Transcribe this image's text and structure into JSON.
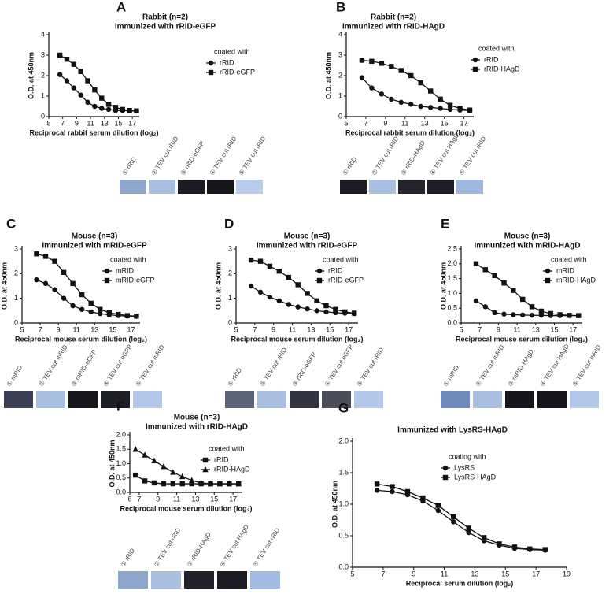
{
  "chart_data": [
    {
      "type": "line",
      "panel": "A",
      "title": "Rabbit (n=2)",
      "subtitle": "Immunized with rRID-eGFP",
      "xlabel": "Reciprocal rabbit serum dilution (log₂)",
      "ylabel": "O.D. at 450nm",
      "x": [
        6.6,
        7.6,
        8.6,
        9.6,
        10.6,
        11.6,
        12.6,
        13.6,
        14.6,
        15.6,
        16.6,
        17.6
      ],
      "xlim": [
        5,
        18
      ],
      "xticks": [
        5,
        7,
        9,
        11,
        13,
        15,
        17
      ],
      "ylim": [
        0,
        4
      ],
      "yticks": [
        0,
        1,
        2,
        3,
        4
      ],
      "legend_title": "coated with",
      "series": [
        {
          "name": "rRID",
          "color": "#111111",
          "marker": "circle",
          "values": [
            2.05,
            1.75,
            1.4,
            1.05,
            0.7,
            0.5,
            0.4,
            0.35,
            0.3,
            0.3,
            0.28,
            0.27
          ]
        },
        {
          "name": "rRID-eGFP",
          "color": "#111111",
          "marker": "square",
          "values": [
            3.0,
            2.8,
            2.55,
            2.2,
            1.75,
            1.3,
            0.9,
            0.6,
            0.45,
            0.35,
            0.3,
            0.28
          ]
        }
      ],
      "blot_lanes": [
        "① rRID",
        "② TEV cut rRID",
        "③ rRID-eGFP",
        "④ TEV cut rRID",
        "⑤ TEV cut rRID"
      ],
      "blot_colors": [
        "#8ea6cc",
        "#a9bfe0",
        "#1a1a22",
        "#15151c",
        "#b8cbe8"
      ]
    },
    {
      "type": "line",
      "panel": "B",
      "title": "Rabbit (n=2)",
      "subtitle": "Immunized with rRID-HAgD",
      "xlabel": "Reciprocal rabbit serum dilution (log₂)",
      "ylabel": "O.D. at 450nm",
      "x": [
        6.6,
        7.6,
        8.6,
        9.6,
        10.6,
        11.6,
        12.6,
        13.6,
        14.6,
        15.6,
        16.6,
        17.6
      ],
      "xlim": [
        5,
        18
      ],
      "xticks": [
        5,
        7,
        9,
        11,
        13,
        15,
        17
      ],
      "ylim": [
        0,
        4
      ],
      "yticks": [
        0,
        1,
        2,
        3,
        4
      ],
      "legend_title": "coated with",
      "series": [
        {
          "name": "rRID",
          "color": "#111111",
          "marker": "circle",
          "values": [
            1.9,
            1.4,
            1.1,
            0.85,
            0.7,
            0.6,
            0.5,
            0.45,
            0.4,
            0.35,
            0.32,
            0.3
          ]
        },
        {
          "name": "rRID-HAgD",
          "color": "#111111",
          "marker": "square",
          "values": [
            2.75,
            2.7,
            2.6,
            2.45,
            2.25,
            2.0,
            1.65,
            1.25,
            0.85,
            0.55,
            0.4,
            0.32
          ]
        }
      ],
      "blot_lanes": [
        "① rRID",
        "② TEV cut rRID",
        "③ rRID-HAgD",
        "④ TEV cut HAgD",
        "⑤ TEV cut rRID"
      ],
      "blot_colors": [
        "#1c1c26",
        "#a9bfe0",
        "#23232c",
        "#1e1e28",
        "#9fb8e0"
      ]
    },
    {
      "type": "line",
      "panel": "C",
      "title": "Mouse (n=3)",
      "subtitle": "Immunized with mRID-eGFP",
      "xlabel": "Reciprocal mouse serum dilution (log₂)",
      "ylabel": "O.D. at 450nm",
      "x": [
        6.6,
        7.6,
        8.6,
        9.6,
        10.6,
        11.6,
        12.6,
        13.6,
        14.6,
        15.6,
        16.6,
        17.6
      ],
      "xlim": [
        5,
        18
      ],
      "xticks": [
        5,
        7,
        9,
        11,
        13,
        15,
        17
      ],
      "ylim": [
        0,
        3
      ],
      "yticks": [
        0,
        1,
        2,
        3
      ],
      "legend_title": "coated with",
      "series": [
        {
          "name": "mRID",
          "color": "#111111",
          "marker": "circle",
          "values": [
            1.75,
            1.6,
            1.35,
            1.0,
            0.7,
            0.55,
            0.45,
            0.38,
            0.33,
            0.3,
            0.28,
            0.27
          ]
        },
        {
          "name": "mRID-eGFP",
          "color": "#111111",
          "marker": "square",
          "values": [
            2.8,
            2.7,
            2.5,
            2.05,
            1.6,
            1.15,
            0.8,
            0.55,
            0.42,
            0.35,
            0.3,
            0.28
          ]
        }
      ],
      "blot_lanes": [
        "① mRID",
        "② TEV cut mRID",
        "③ mRID-eGFP",
        "④ TEV cut eGFP",
        "⑤ TEV cut mRID"
      ],
      "blot_colors": [
        "#3a3f55",
        "#a9bfe0",
        "#16161c",
        "#1e1e26",
        "#b3c7e8"
      ]
    },
    {
      "type": "line",
      "panel": "D",
      "title": "Mouse (n=3)",
      "subtitle": "Immunized with rRID-eGFP",
      "xlabel": "Reciprocal mouse serum dilution (log₂)",
      "ylabel": "O.D. at 450nm",
      "x": [
        6.6,
        7.6,
        8.6,
        9.6,
        10.6,
        11.6,
        12.6,
        13.6,
        14.6,
        15.6,
        16.6,
        17.6
      ],
      "xlim": [
        5,
        18
      ],
      "xticks": [
        5,
        7,
        9,
        11,
        13,
        15,
        17
      ],
      "ylim": [
        0,
        3
      ],
      "yticks": [
        0,
        1,
        2,
        3
      ],
      "legend_title": "coated with",
      "series": [
        {
          "name": "rRID",
          "color": "#111111",
          "marker": "circle",
          "values": [
            1.5,
            1.25,
            1.05,
            0.9,
            0.75,
            0.65,
            0.57,
            0.5,
            0.45,
            0.42,
            0.4,
            0.38
          ]
        },
        {
          "name": "rRID-eGFP",
          "color": "#111111",
          "marker": "square",
          "values": [
            2.55,
            2.5,
            2.3,
            2.1,
            1.85,
            1.55,
            1.2,
            0.9,
            0.7,
            0.55,
            0.45,
            0.4
          ]
        }
      ],
      "blot_lanes": [
        "① rRID",
        "② TEV cut rRID",
        "③ rRID-eGFP",
        "④ TEV cut eGFP",
        "⑤ TEV cut rRID"
      ],
      "blot_colors": [
        "#5d6378",
        "#a9bfe0",
        "#33333d",
        "#4a4c58",
        "#b3c7e8"
      ]
    },
    {
      "type": "line",
      "panel": "E",
      "title": "Mouse (n=3)",
      "subtitle": "Immunized with mRID-HAgD",
      "xlabel": "Reciprocal mouse serum dilution (log₂)",
      "ylabel": "O.D. at 450nm",
      "x": [
        6.6,
        7.6,
        8.6,
        9.6,
        10.6,
        11.6,
        12.6,
        13.6,
        14.6,
        15.6,
        16.6,
        17.6
      ],
      "xlim": [
        5,
        18
      ],
      "xticks": [
        5,
        7,
        9,
        11,
        13,
        15,
        17
      ],
      "ylim": [
        0,
        2.5
      ],
      "yticks": [
        {
          "value": 0,
          "label": "0.0"
        },
        0.5,
        {
          "value": 1,
          "label": "1.0"
        },
        1.5,
        {
          "value": 2,
          "label": "2.0"
        },
        2.5
      ],
      "legend_title": "coated with",
      "series": [
        {
          "name": "mRID",
          "color": "#111111",
          "marker": "circle",
          "values": [
            0.75,
            0.55,
            0.35,
            0.3,
            0.28,
            0.27,
            0.26,
            0.26,
            0.25,
            0.25,
            0.25,
            0.25
          ]
        },
        {
          "name": "mRID-HAgD",
          "color": "#111111",
          "marker": "square",
          "values": [
            2.0,
            1.8,
            1.6,
            1.35,
            1.1,
            0.8,
            0.55,
            0.4,
            0.32,
            0.28,
            0.26,
            0.25
          ]
        }
      ],
      "blot_lanes": [
        "① mRID",
        "② TEV cut mRID",
        "③ mRID-HAgD",
        "④ TEV cut HAgD",
        "⑤ TEV cut mRID"
      ],
      "blot_colors": [
        "#6f8ab8",
        "#a9bfe0",
        "#15151b",
        "#14141a",
        "#b3c7e8"
      ]
    },
    {
      "type": "line",
      "panel": "F",
      "title": "Mouse (n=3)",
      "subtitle": "Immunized with rRID-HAgD",
      "xlabel": "Reciprocal mouse serum dilution (log₂)",
      "ylabel": "O.D. at 450nm",
      "x": [
        6.6,
        7.6,
        8.6,
        9.6,
        10.6,
        11.6,
        12.6,
        13.6,
        14.6,
        15.6,
        16.6,
        17.6
      ],
      "xlim": [
        6,
        18
      ],
      "xticks": [
        6,
        7,
        9,
        11,
        13,
        15,
        17
      ],
      "ylim": [
        0,
        2
      ],
      "yticks": [
        {
          "value": 0,
          "label": "0.0"
        },
        0.5,
        {
          "value": 1,
          "label": "1.0"
        },
        1.5,
        {
          "value": 2,
          "label": "2.0"
        }
      ],
      "legend_title": "coated with",
      "series": [
        {
          "name": "rRID",
          "color": "#111111",
          "marker": "square",
          "values": [
            0.6,
            0.4,
            0.33,
            0.3,
            0.3,
            0.3,
            0.3,
            0.3,
            0.3,
            0.3,
            0.3,
            0.3
          ]
        },
        {
          "name": "rRID-HAgD",
          "color": "#111111",
          "marker": "triangle",
          "values": [
            1.5,
            1.3,
            1.1,
            0.9,
            0.7,
            0.55,
            0.42,
            0.33,
            0.3,
            0.3,
            0.3,
            0.3
          ]
        }
      ],
      "blot_lanes": [
        "① rRID",
        "② TEV cut rRID",
        "③ rRID-HAgD",
        "④ TEV cut HAgD",
        "⑤ TEV cut rRID"
      ],
      "blot_colors": [
        "#8ea6cc",
        "#a9bfe0",
        "#22222a",
        "#1c1c24",
        "#a3bce4"
      ]
    },
    {
      "type": "line",
      "panel": "G",
      "title": "Immunized with LysRS-HAgD",
      "xlabel": "Reciprocal serum dilution (log₂)",
      "ylabel": "O.D. at 450nm",
      "x": [
        6.6,
        7.6,
        8.6,
        9.6,
        10.6,
        11.6,
        12.6,
        13.6,
        14.6,
        15.6,
        16.6,
        17.6
      ],
      "xlim": [
        5,
        19
      ],
      "xticks": [
        5,
        7,
        9,
        11,
        13,
        15,
        17,
        19
      ],
      "ylim": [
        0,
        2
      ],
      "yticks": [
        {
          "value": 0,
          "label": "0.0"
        },
        0.5,
        {
          "value": 1,
          "label": "1.0"
        },
        1.5,
        {
          "value": 2,
          "label": "2.0"
        }
      ],
      "legend_title": "coating with",
      "series": [
        {
          "name": "LysRS",
          "color": "#111111",
          "marker": "circle",
          "values": [
            1.22,
            1.2,
            1.15,
            1.05,
            0.9,
            0.72,
            0.55,
            0.42,
            0.35,
            0.3,
            0.28,
            0.27
          ]
        },
        {
          "name": "LysRS-HAgD",
          "color": "#111111",
          "marker": "square",
          "values": [
            1.32,
            1.28,
            1.2,
            1.1,
            0.98,
            0.8,
            0.62,
            0.47,
            0.37,
            0.32,
            0.29,
            0.28
          ]
        }
      ]
    }
  ]
}
